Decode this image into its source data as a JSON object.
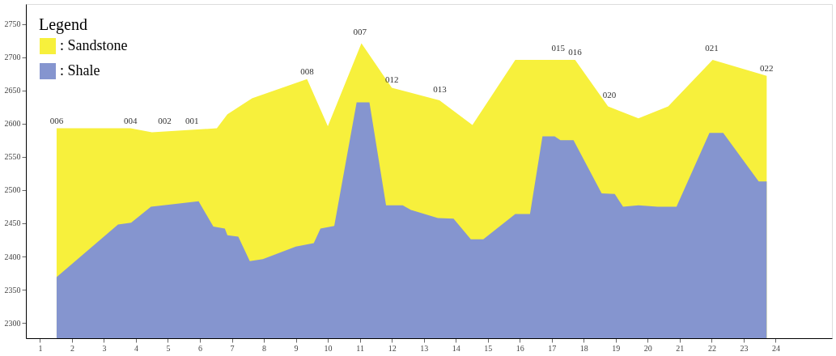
{
  "chart_data": {
    "type": "area",
    "xlim": [
      0.56,
      25.76
    ],
    "ylim": [
      2277,
      2780
    ],
    "xticks": [
      1,
      2,
      3,
      4,
      5,
      6,
      7,
      8,
      9,
      10,
      11,
      12,
      13,
      14,
      15,
      16,
      17,
      18,
      19,
      20,
      21,
      22,
      23,
      24
    ],
    "yticks": [
      2300,
      2350,
      2400,
      2450,
      2500,
      2550,
      2600,
      2650,
      2700,
      2750
    ],
    "grid": false,
    "legend": "top left",
    "legend_title": "Legend",
    "series": [
      {
        "name": ": Sandstone",
        "color": "#f7f03c",
        "x": [
          1.52,
          3.83,
          4.5,
          6.53,
          6.86,
          7.63,
          9.35,
          10.0,
          11.05,
          12.0,
          13.49,
          14.52,
          15.86,
          17.73,
          18.76,
          19.71,
          20.64,
          22.03,
          23.72
        ],
        "values": [
          2593,
          2593,
          2587,
          2593,
          2614,
          2638,
          2667,
          2596,
          2721,
          2654,
          2635,
          2598,
          2696,
          2696,
          2626,
          2608,
          2626,
          2696,
          2672
        ]
      },
      {
        "name": ": Shale",
        "color": "#8595cf",
        "x": [
          1.52,
          3.44,
          3.85,
          4.47,
          5.96,
          6.42,
          6.78,
          6.86,
          7.2,
          7.56,
          7.97,
          9.0,
          9.56,
          9.77,
          10.2,
          10.9,
          11.3,
          11.82,
          12.34,
          12.6,
          13.44,
          13.93,
          14.47,
          14.86,
          15.86,
          16.32,
          16.71,
          17.09,
          17.27,
          17.68,
          18.56,
          18.97,
          19.23,
          19.71,
          20.31,
          20.9,
          21.93,
          22.36,
          23.47,
          23.72
        ],
        "values": [
          2369,
          2448,
          2451,
          2475,
          2483,
          2445,
          2442,
          2432,
          2430,
          2393,
          2396,
          2415,
          2420,
          2442,
          2446,
          2632,
          2632,
          2477,
          2477,
          2470,
          2458,
          2457,
          2426,
          2426,
          2464,
          2464,
          2581,
          2581,
          2575,
          2575,
          2495,
          2494,
          2475,
          2477,
          2475,
          2475,
          2586,
          2586,
          2513,
          2513
        ]
      }
    ],
    "annotations": [
      {
        "text": "006",
        "x": 1.52,
        "y": 2593
      },
      {
        "text": "004",
        "x": 3.83,
        "y": 2593
      },
      {
        "text": "002",
        "x": 4.9,
        "y": 2592
      },
      {
        "text": "001",
        "x": 5.75,
        "y": 2592
      },
      {
        "text": "008",
        "x": 9.35,
        "y": 2667
      },
      {
        "text": "007",
        "x": 11.0,
        "y": 2727
      },
      {
        "text": "012",
        "x": 12.0,
        "y": 2654
      },
      {
        "text": "013",
        "x": 13.5,
        "y": 2640
      },
      {
        "text": "015",
        "x": 17.2,
        "y": 2702
      },
      {
        "text": "016",
        "x": 17.73,
        "y": 2696
      },
      {
        "text": "020",
        "x": 18.8,
        "y": 2631
      },
      {
        "text": "021",
        "x": 22.0,
        "y": 2702
      },
      {
        "text": "022",
        "x": 23.72,
        "y": 2672
      }
    ]
  }
}
